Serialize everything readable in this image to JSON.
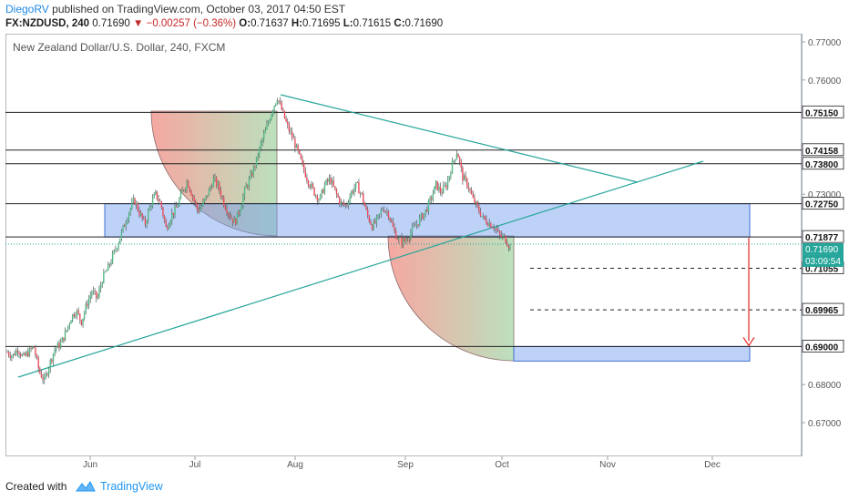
{
  "header": {
    "author": "DiegoRV",
    "published_text": "published on TradingView.com, October 03, 2017 04:50 EST"
  },
  "info": {
    "symbol": "FX:NZDUSD, 240",
    "last": "0.71690",
    "change": "−0.00257 (−0.36%)",
    "open_label": "O:",
    "open": "0.71637",
    "high_label": "H:",
    "high": "0.71695",
    "low_label": "L:",
    "low": "0.71615",
    "close_label": "C:",
    "close": "0.71690"
  },
  "series_title": "New Zealand Dollar/U.S. Dollar, 240, FXCM",
  "footer": {
    "created_with": "Created with",
    "brand": "TradingView"
  },
  "colors": {
    "triangle_line": "#26a69a",
    "zone_fill": "#6f9cf0",
    "target_arrow": "#e53935",
    "bear_arc": "#f28b82",
    "bull_arc": "#a5d6a7"
  },
  "chart_data": {
    "type": "candlestick",
    "symbol": "NZDUSD",
    "timeframe": "240",
    "ylim": [
      0.6605,
      0.7713
    ],
    "yticks": [
      "0.77000",
      "0.76000",
      "0.73000",
      "0.68000",
      "0.67000"
    ],
    "xticks": [
      "Jun",
      "Jul",
      "Aug",
      "Sep",
      "Oct",
      "Nov",
      "Dec"
    ],
    "price_levels": [
      {
        "value": 0.7515,
        "label": "0.75150",
        "style": "solid"
      },
      {
        "value": 0.74158,
        "label": "0.74158",
        "style": "solid"
      },
      {
        "value": 0.738,
        "label": "0.73800",
        "style": "solid"
      },
      {
        "value": 0.7275,
        "label": "0.72750",
        "style": "solid"
      },
      {
        "value": 0.71877,
        "label": "0.71877",
        "style": "solid"
      },
      {
        "value": 0.71055,
        "label": "0.71055",
        "style": "dashed"
      },
      {
        "value": 0.69965,
        "label": "0.69965",
        "style": "dashed"
      },
      {
        "value": 0.69,
        "label": "0.69000",
        "style": "solid"
      }
    ],
    "current_price": {
      "value": 0.7169,
      "label": "0.71690",
      "countdown": "03:09:54"
    },
    "path": [
      [
        0.6885,
        0.6875,
        0.6895,
        0.687,
        0.6885,
        0.69,
        0.6835,
        0.681,
        0.6855,
        0.6895,
        0.6905,
        0.6935,
        0.6975,
        0.6995,
        0.6965,
        0.701,
        0.7045,
        0.7025,
        0.708,
        0.7105,
        0.714,
        0.7175,
        0.7215,
        0.7255,
        0.7285,
        0.725,
        0.722,
        0.727,
        0.73,
        0.7275,
        0.721,
        0.7245,
        0.7265,
        0.7305,
        0.7335,
        0.7295,
        0.7255,
        0.7275,
        0.7305,
        0.734,
        0.7315,
        0.7275,
        0.7245,
        0.7225,
        0.7265,
        0.7315,
        0.7345,
        0.7385,
        0.7435,
        0.7475,
        0.752,
        0.7555,
        0.7515,
        0.7475,
        0.7445,
        0.7405,
        0.7365,
        0.733,
        0.7305,
        0.7285,
        0.7325,
        0.734,
        0.7305,
        0.7275,
        0.727,
        0.7305,
        0.7325,
        0.7295,
        0.7245,
        0.7215,
        0.7235,
        0.7265,
        0.725,
        0.7205,
        0.718,
        0.7175,
        0.7195,
        0.7215,
        0.7235,
        0.7255,
        0.7285,
        0.7325,
        0.7305,
        0.7325,
        0.7375,
        0.7415,
        0.7345,
        0.7325,
        0.7285,
        0.726,
        0.7235,
        0.7225,
        0.7215,
        0.719,
        0.7185,
        0.716
      ]
    ]
  }
}
